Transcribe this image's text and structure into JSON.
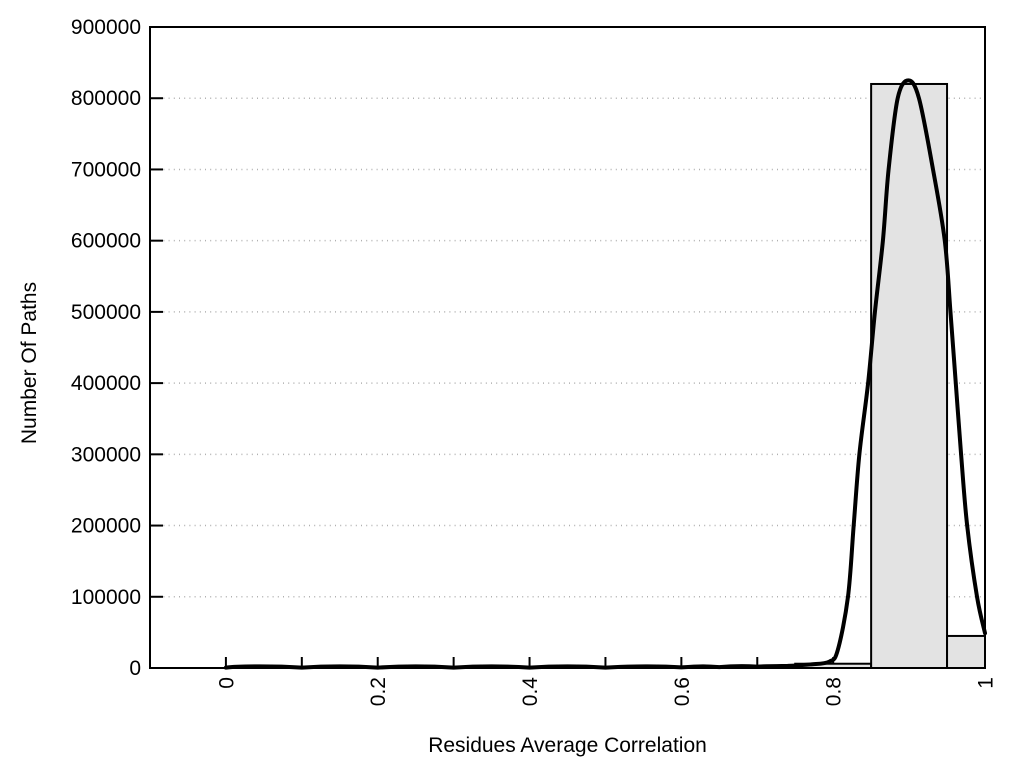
{
  "chart_data": {
    "type": "bar",
    "subtype": "histogram-with-fit-curve",
    "title": "",
    "xlabel": "Residues Average Correlation",
    "ylabel": "Number Of Paths",
    "xlim": [
      -0.1,
      1.0
    ],
    "ylim": [
      0,
      900000
    ],
    "grid": {
      "horizontal_dotted": true,
      "grid_values": [
        100000,
        200000,
        300000,
        400000,
        500000,
        600000,
        700000,
        800000
      ]
    },
    "legend": "none",
    "x_ticks": [
      {
        "v": 0.0,
        "label": "0"
      },
      {
        "v": 0.1,
        "label": ""
      },
      {
        "v": 0.2,
        "label": "0.2"
      },
      {
        "v": 0.3,
        "label": ""
      },
      {
        "v": 0.4,
        "label": "0.4"
      },
      {
        "v": 0.5,
        "label": ""
      },
      {
        "v": 0.6,
        "label": "0.6"
      },
      {
        "v": 0.7,
        "label": ""
      },
      {
        "v": 0.8,
        "label": "0.8"
      },
      {
        "v": 0.9,
        "label": ""
      },
      {
        "v": 1.0,
        "label": "1"
      }
    ],
    "y_ticks": [
      {
        "v": 0,
        "label": "0"
      },
      {
        "v": 100000,
        "label": "100000"
      },
      {
        "v": 200000,
        "label": "200000"
      },
      {
        "v": 300000,
        "label": "300000"
      },
      {
        "v": 400000,
        "label": "400000"
      },
      {
        "v": 500000,
        "label": "500000"
      },
      {
        "v": 600000,
        "label": "600000"
      },
      {
        "v": 700000,
        "label": "700000"
      },
      {
        "v": 800000,
        "label": "800000"
      },
      {
        "v": 900000,
        "label": "900000"
      }
    ],
    "bars": [
      {
        "x0": 0.75,
        "x1": 0.85,
        "value": 6000
      },
      {
        "x0": 0.85,
        "x1": 0.95,
        "value": 820000
      },
      {
        "x0": 0.95,
        "x1": 1.0,
        "value": 45000
      }
    ],
    "curve": {
      "name": "fit-curve",
      "points": [
        [
          0.0,
          500
        ],
        [
          0.1,
          500
        ],
        [
          0.2,
          500
        ],
        [
          0.3,
          500
        ],
        [
          0.4,
          500
        ],
        [
          0.5,
          500
        ],
        [
          0.6,
          800
        ],
        [
          0.65,
          1200
        ],
        [
          0.7,
          2000
        ],
        [
          0.74,
          3000
        ],
        [
          0.77,
          5000
        ],
        [
          0.795,
          9000
        ],
        [
          0.806,
          25000
        ],
        [
          0.8195,
          100000
        ],
        [
          0.827,
          200000
        ],
        [
          0.8345,
          300000
        ],
        [
          0.846,
          400000
        ],
        [
          0.855,
          500000
        ],
        [
          0.8655,
          600000
        ],
        [
          0.873,
          700000
        ],
        [
          0.885,
          800000
        ],
        [
          0.899,
          825000
        ],
        [
          0.913,
          800000
        ],
        [
          0.9315,
          700000
        ],
        [
          0.947,
          600000
        ],
        [
          0.9545,
          500000
        ],
        [
          0.9615,
          400000
        ],
        [
          0.9685,
          300000
        ],
        [
          0.9765,
          200000
        ],
        [
          0.9895,
          100000
        ],
        [
          1.0,
          49000
        ]
      ]
    },
    "colors": {
      "background": "#ffffff",
      "axis": "#000000",
      "bar_fill": "#e3e3e3",
      "bar_border": "#000000",
      "curve": "#000000",
      "grid": "#b0b0b0",
      "text": "#000000"
    }
  }
}
